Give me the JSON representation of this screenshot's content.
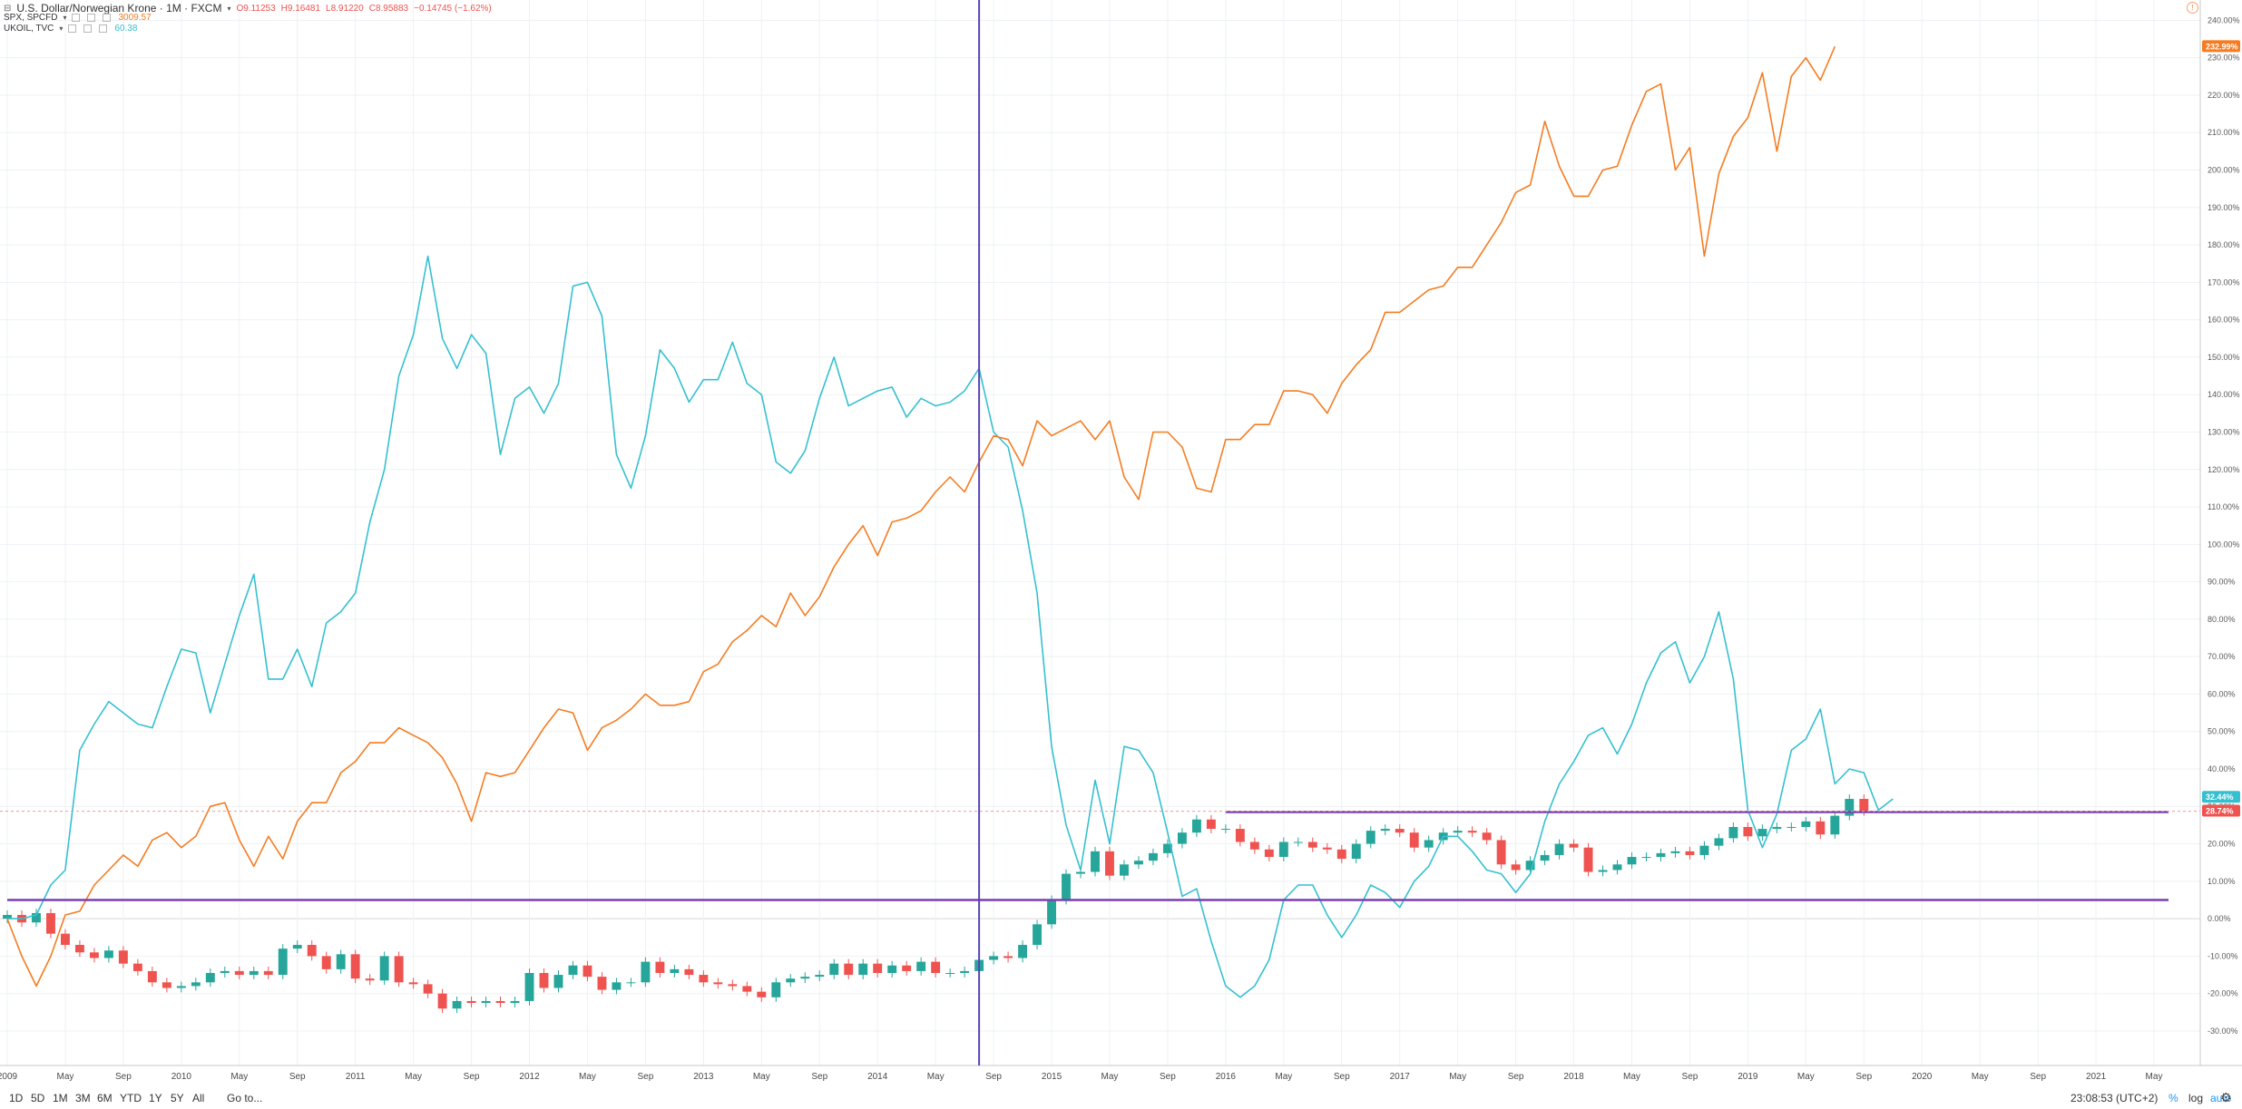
{
  "header": {
    "symbol_title": "U.S. Dollar/Norwegian Krone · 1M · FXCM",
    "ohlc": {
      "open": "O9.11253",
      "high": "H9.16481",
      "low": "L8.91220",
      "close": "C8.95883",
      "change": "−0.14745 (−1.62%)"
    }
  },
  "legend": [
    {
      "label": "SPX, SPCFD",
      "value": "3009.57",
      "color": "#f57c21"
    },
    {
      "label": "UKOIL, TVC",
      "value": "60.38",
      "color": "#35c0d0"
    }
  ],
  "bottom_bar": {
    "ranges": [
      "1D",
      "5D",
      "1M",
      "3M",
      "6M",
      "YTD",
      "1Y",
      "5Y",
      "All"
    ],
    "goto": "Go to...",
    "clock": "23:08:53 (UTC+2)",
    "percent": "%",
    "log": "log",
    "auto": "auto"
  },
  "chart_data": {
    "type": "line",
    "x_axis": {
      "ticks": [
        "2009",
        "May",
        "Sep",
        "2010",
        "May",
        "Sep",
        "2011",
        "May",
        "Sep",
        "2012",
        "May",
        "Sep",
        "2013",
        "May",
        "Sep",
        "2014",
        "May",
        "Sep",
        "2015",
        "May",
        "Sep",
        "2016",
        "May",
        "Sep",
        "2017",
        "May",
        "Sep",
        "2018",
        "May",
        "Sep",
        "2019",
        "May",
        "Sep",
        "2020",
        "May",
        "Sep",
        "2021",
        "May"
      ],
      "range": [
        "2009-01",
        "2021-06"
      ]
    },
    "y_axis": {
      "unit": "%",
      "range": [
        -38,
        243
      ],
      "ticks": [
        "-30.00%",
        "-20.00%",
        "-10.00%",
        "0.00%",
        "10.00%",
        "20.00%",
        "30.00%",
        "40.00%",
        "50.00%",
        "60.00%",
        "70.00%",
        "80.00%",
        "90.00%",
        "100.00%",
        "110.00%",
        "120.00%",
        "130.00%",
        "140.00%",
        "150.00%",
        "160.00%",
        "170.00%",
        "180.00%",
        "190.00%",
        "200.00%",
        "210.00%",
        "220.00%",
        "230.00%",
        "240.00%"
      ],
      "scale": "percent",
      "grid": true,
      "position": "right"
    },
    "price_labels": [
      {
        "value": 232.99,
        "text": "232.99%",
        "color": "#f57c21"
      },
      {
        "value": 32.44,
        "text": "32.44%",
        "color": "#35c0d0"
      },
      {
        "value": 28.74,
        "text": "28.74%",
        "color": "#ef5350"
      }
    ],
    "spx_pct": [
      0,
      -10,
      -18,
      -10,
      1,
      2,
      9,
      13,
      17,
      14,
      21,
      23,
      19,
      22,
      30,
      31,
      21,
      14,
      22,
      16,
      26,
      31,
      31,
      39,
      42,
      47,
      47,
      51,
      49,
      47,
      43,
      36,
      26,
      39,
      38,
      39,
      45,
      51,
      56,
      55,
      45,
      51,
      53,
      56,
      60,
      57,
      57,
      58,
      66,
      68,
      74,
      77,
      81,
      78,
      87,
      81,
      86,
      94,
      100,
      105,
      97,
      106,
      107,
      109,
      114,
      118,
      114,
      122,
      129,
      128,
      121,
      133,
      129,
      131,
      133,
      128,
      133,
      118,
      112,
      130,
      130,
      126,
      115,
      114,
      128,
      128,
      132,
      132,
      141,
      141,
      140,
      135,
      143,
      148,
      152,
      162,
      162,
      165,
      168,
      169,
      174,
      174,
      180,
      186,
      194,
      196,
      213,
      201,
      193,
      193,
      200,
      201,
      212,
      221,
      223,
      200,
      206,
      177,
      199,
      209,
      214,
      226,
      205,
      225,
      230,
      224,
      233
    ],
    "ukoil_pct": [
      0,
      0,
      1,
      9,
      13,
      45,
      52,
      58,
      55,
      52,
      51,
      62,
      72,
      71,
      55,
      68,
      81,
      92,
      64,
      64,
      72,
      62,
      79,
      82,
      87,
      106,
      120,
      145,
      156,
      177,
      155,
      147,
      156,
      151,
      124,
      139,
      142,
      135,
      143,
      169,
      170,
      161,
      124,
      115,
      129,
      152,
      147,
      138,
      144,
      144,
      154,
      143,
      140,
      122,
      119,
      125,
      139,
      150,
      137,
      139,
      141,
      142,
      134,
      139,
      137,
      138,
      141,
      147,
      130,
      126,
      109,
      87,
      46,
      25,
      13,
      37,
      20,
      46,
      45,
      39,
      23,
      6,
      8,
      -6,
      -18,
      -21,
      -18,
      -11,
      5,
      9,
      9,
      1,
      -5,
      1,
      9,
      7,
      3,
      10,
      14,
      22,
      22,
      18,
      13,
      12,
      7,
      12,
      26,
      36,
      42,
      49,
      51,
      44,
      52,
      63,
      71,
      74,
      63,
      70,
      82,
      64,
      29,
      19,
      28,
      45,
      48,
      56,
      36,
      40,
      39,
      29,
      32
    ],
    "usdnok_candles": [
      {
        "o": 0.0,
        "c": 1.0
      },
      {
        "o": 1.0,
        "c": -1.0
      },
      {
        "o": -1.0,
        "c": 1.5
      },
      {
        "o": 1.5,
        "c": -4.0
      },
      {
        "o": -4.0,
        "c": -7.0
      },
      {
        "o": -7.0,
        "c": -9.0
      },
      {
        "o": -9.0,
        "c": -10.5
      },
      {
        "o": -10.5,
        "c": -8.5
      },
      {
        "o": -8.5,
        "c": -12.0
      },
      {
        "o": -12.0,
        "c": -14.0
      },
      {
        "o": -14.0,
        "c": -17.0
      },
      {
        "o": -17.0,
        "c": -18.5
      },
      {
        "o": -18.5,
        "c": -18.0
      },
      {
        "o": -18.0,
        "c": -17.0
      },
      {
        "o": -17.0,
        "c": -14.5
      },
      {
        "o": -14.5,
        "c": -14.0
      },
      {
        "o": -14.0,
        "c": -15.0
      },
      {
        "o": -15.0,
        "c": -14.0
      },
      {
        "o": -14.0,
        "c": -15.0
      },
      {
        "o": -15.0,
        "c": -8.0
      },
      {
        "o": -8.0,
        "c": -7.0
      },
      {
        "o": -7.0,
        "c": -10.0
      },
      {
        "o": -10.0,
        "c": -13.5
      },
      {
        "o": -13.5,
        "c": -9.5
      },
      {
        "o": -9.5,
        "c": -16.0
      },
      {
        "o": -16.0,
        "c": -16.5
      },
      {
        "o": -16.5,
        "c": -10.0
      },
      {
        "o": -10.0,
        "c": -17.0
      },
      {
        "o": -17.0,
        "c": -17.5
      },
      {
        "o": -17.5,
        "c": -20.0
      },
      {
        "o": -20.0,
        "c": -24.0
      },
      {
        "o": -24.0,
        "c": -22.0
      },
      {
        "o": -22.0,
        "c": -22.5
      },
      {
        "o": -22.5,
        "c": -22.0
      },
      {
        "o": -22.0,
        "c": -22.5
      },
      {
        "o": -22.5,
        "c": -22.0
      },
      {
        "o": -22.0,
        "c": -14.5
      },
      {
        "o": -14.5,
        "c": -18.5
      },
      {
        "o": -18.5,
        "c": -15.0
      },
      {
        "o": -15.0,
        "c": -12.5
      },
      {
        "o": -12.5,
        "c": -15.5
      },
      {
        "o": -15.5,
        "c": -19.0
      },
      {
        "o": -19.0,
        "c": -17.0
      },
      {
        "o": -17.0,
        "c": -17.0
      },
      {
        "o": -17.0,
        "c": -11.5
      },
      {
        "o": -11.5,
        "c": -14.5
      },
      {
        "o": -14.5,
        "c": -13.5
      },
      {
        "o": -13.5,
        "c": -15.0
      },
      {
        "o": -15.0,
        "c": -17.0
      },
      {
        "o": -17.0,
        "c": -17.5
      },
      {
        "o": -17.5,
        "c": -18.0
      },
      {
        "o": -18.0,
        "c": -19.5
      },
      {
        "o": -19.5,
        "c": -21.0
      },
      {
        "o": -21.0,
        "c": -17.0
      },
      {
        "o": -17.0,
        "c": -16.0
      },
      {
        "o": -16.0,
        "c": -15.5
      },
      {
        "o": -15.5,
        "c": -15.0
      },
      {
        "o": -15.0,
        "c": -12.0
      },
      {
        "o": -12.0,
        "c": -15.0
      },
      {
        "o": -15.0,
        "c": -12.0
      },
      {
        "o": -12.0,
        "c": -14.5
      },
      {
        "o": -14.5,
        "c": -12.5
      },
      {
        "o": -12.5,
        "c": -14.0
      },
      {
        "o": -14.0,
        "c": -11.5
      },
      {
        "o": -11.5,
        "c": -14.5
      },
      {
        "o": -14.5,
        "c": -14.5
      },
      {
        "o": -14.5,
        "c": -14.0
      },
      {
        "o": -14.0,
        "c": -11.0
      },
      {
        "o": -11.0,
        "c": -10.0
      },
      {
        "o": -10.0,
        "c": -10.5
      },
      {
        "o": -10.5,
        "c": -7.0
      },
      {
        "o": -7.0,
        "c": -1.5
      },
      {
        "o": -1.5,
        "c": 5.0
      },
      {
        "o": 5.0,
        "c": 12.0
      },
      {
        "o": 12.0,
        "c": 12.5
      },
      {
        "o": 12.5,
        "c": 18.0
      },
      {
        "o": 18.0,
        "c": 11.5
      },
      {
        "o": 11.5,
        "c": 14.5
      },
      {
        "o": 14.5,
        "c": 15.5
      },
      {
        "o": 15.5,
        "c": 17.5
      },
      {
        "o": 17.5,
        "c": 20.0
      },
      {
        "o": 20.0,
        "c": 23.0
      },
      {
        "o": 23.0,
        "c": 26.5
      },
      {
        "o": 26.5,
        "c": 24.0
      },
      {
        "o": 24.0,
        "c": 24.0
      },
      {
        "o": 24.0,
        "c": 20.5
      },
      {
        "o": 20.5,
        "c": 18.5
      },
      {
        "o": 18.5,
        "c": 16.5
      },
      {
        "o": 16.5,
        "c": 20.5
      },
      {
        "o": 20.5,
        "c": 20.5
      },
      {
        "o": 20.5,
        "c": 19.0
      },
      {
        "o": 19.0,
        "c": 18.5
      },
      {
        "o": 18.5,
        "c": 16.0
      },
      {
        "o": 16.0,
        "c": 20.0
      },
      {
        "o": 20.0,
        "c": 23.5
      },
      {
        "o": 23.5,
        "c": 24.0
      },
      {
        "o": 24.0,
        "c": 23.0
      },
      {
        "o": 23.0,
        "c": 19.0
      },
      {
        "o": 19.0,
        "c": 21.0
      },
      {
        "o": 21.0,
        "c": 23.0
      },
      {
        "o": 23.0,
        "c": 23.5
      },
      {
        "o": 23.5,
        "c": 23.0
      },
      {
        "o": 23.0,
        "c": 21.0
      },
      {
        "o": 21.0,
        "c": 14.5
      },
      {
        "o": 14.5,
        "c": 13.0
      },
      {
        "o": 13.0,
        "c": 15.5
      },
      {
        "o": 15.5,
        "c": 17.0
      },
      {
        "o": 17.0,
        "c": 20.0
      },
      {
        "o": 20.0,
        "c": 19.0
      },
      {
        "o": 19.0,
        "c": 12.5
      },
      {
        "o": 12.5,
        "c": 13.0
      },
      {
        "o": 13.0,
        "c": 14.5
      },
      {
        "o": 14.5,
        "c": 16.5
      },
      {
        "o": 16.5,
        "c": 16.5
      },
      {
        "o": 16.5,
        "c": 17.5
      },
      {
        "o": 17.5,
        "c": 18.0
      },
      {
        "o": 18.0,
        "c": 17.0
      },
      {
        "o": 17.0,
        "c": 19.5
      },
      {
        "o": 19.5,
        "c": 21.5
      },
      {
        "o": 21.5,
        "c": 24.5
      },
      {
        "o": 24.5,
        "c": 22.0
      },
      {
        "o": 22.0,
        "c": 24.0
      },
      {
        "o": 24.0,
        "c": 24.5
      },
      {
        "o": 24.5,
        "c": 24.5
      },
      {
        "o": 24.5,
        "c": 26.0
      },
      {
        "o": 26.0,
        "c": 22.5
      },
      {
        "o": 22.5,
        "c": 27.5
      },
      {
        "o": 27.5,
        "c": 32.0
      },
      {
        "o": 32.0,
        "c": 28.7
      }
    ],
    "horizontal_lines": [
      {
        "value": 5,
        "from": "2009-01",
        "to": "2021-06",
        "color": "#7a3fb0"
      },
      {
        "value": 28.5,
        "from": "2016-01",
        "to": "2021-06",
        "color": "#7a3fb0"
      }
    ],
    "crosshair_date": "2014-08",
    "colors": {
      "spx": "#f57c21",
      "ukoil": "#35c0d0",
      "up": "#26a69a",
      "down": "#ef5350",
      "drawing": "#7a3fb0",
      "crosshair": "#5a43b6"
    }
  }
}
